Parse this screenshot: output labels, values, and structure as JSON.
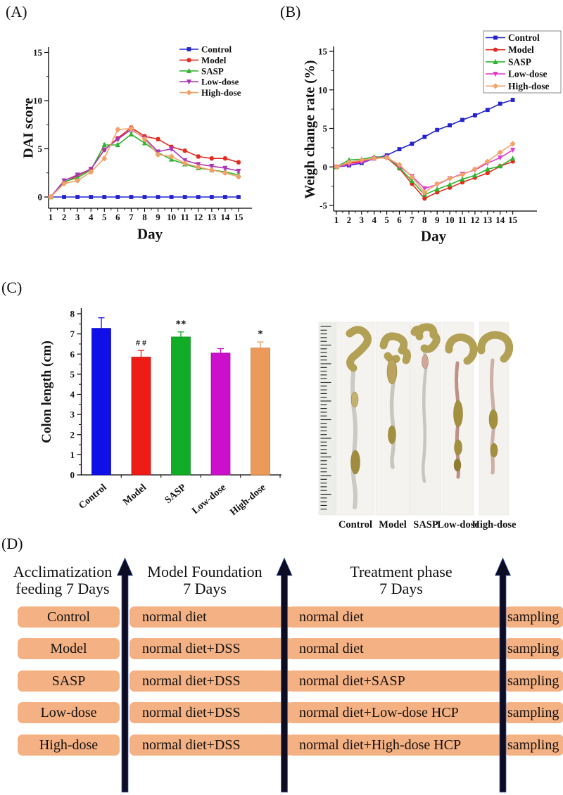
{
  "figure": {
    "panel_labels": {
      "a": "(A)",
      "b": "(B)",
      "c": "(C)",
      "d": "(D)"
    }
  },
  "chart_data": [
    {
      "id": "dai_score",
      "type": "line",
      "panel": "A",
      "title": "",
      "xlabel": "Day",
      "ylabel": "DAI score",
      "x": [
        1,
        2,
        3,
        4,
        5,
        6,
        7,
        8,
        9,
        10,
        11,
        12,
        13,
        14,
        15
      ],
      "xlim": [
        1,
        15
      ],
      "ylim": [
        0,
        15
      ],
      "yticks": [
        0,
        5,
        10,
        15
      ],
      "legend_position": "top-right",
      "legend_boxed": false,
      "series": [
        {
          "name": "Control",
          "color": "#2323cd",
          "marker": "square",
          "values": [
            0,
            0,
            0,
            0,
            0,
            0,
            0,
            0,
            0,
            0,
            0,
            0,
            0,
            0,
            0
          ]
        },
        {
          "name": "Model",
          "color": "#e42b1e",
          "marker": "circle",
          "values": [
            0,
            1.5,
            2.2,
            2.9,
            4.9,
            6.1,
            7.2,
            6.3,
            6.0,
            5.2,
            4.8,
            4.2,
            4.0,
            4.0,
            3.6
          ]
        },
        {
          "name": "SASP",
          "color": "#2eb42e",
          "marker": "triangle-up",
          "values": [
            0,
            1.6,
            2.0,
            2.8,
            5.4,
            5.4,
            6.5,
            5.6,
            4.6,
            3.9,
            3.4,
            3.0,
            2.8,
            2.6,
            2.3
          ]
        },
        {
          "name": "Low-dose",
          "color": "#a936b5",
          "marker": "triangle-down",
          "values": [
            0,
            1.7,
            2.3,
            2.9,
            4.9,
            6.0,
            7.0,
            6.1,
            4.7,
            5.0,
            3.8,
            3.4,
            3.2,
            3.0,
            2.7
          ]
        },
        {
          "name": "High-dose",
          "color": "#f2a269",
          "marker": "diamond",
          "values": [
            0,
            1.4,
            1.7,
            2.6,
            4.0,
            7.0,
            7.1,
            6.0,
            4.4,
            4.2,
            3.5,
            3.1,
            2.8,
            2.5,
            2.1
          ]
        }
      ]
    },
    {
      "id": "weight_change",
      "type": "line",
      "panel": "B",
      "title": "",
      "xlabel": "Day",
      "ylabel": "Weigh change rate (%)",
      "x": [
        1,
        2,
        3,
        4,
        5,
        6,
        7,
        8,
        9,
        10,
        11,
        12,
        13,
        14,
        15
      ],
      "xlim": [
        1,
        15
      ],
      "ylim": [
        -5,
        15
      ],
      "yticks": [
        -5,
        0,
        5,
        10,
        15
      ],
      "legend_position": "top-right",
      "legend_boxed": true,
      "series": [
        {
          "name": "Control",
          "color": "#2323cd",
          "marker": "square",
          "values": [
            0,
            0.2,
            0.5,
            1.1,
            1.5,
            2.3,
            3.0,
            3.9,
            4.8,
            5.4,
            6.1,
            6.7,
            7.4,
            8.2,
            8.7
          ]
        },
        {
          "name": "Model",
          "color": "#e42b1e",
          "marker": "circle",
          "values": [
            0,
            0.5,
            0.7,
            1.1,
            1.2,
            -0.2,
            -2.2,
            -4.1,
            -3.3,
            -2.7,
            -2.0,
            -1.4,
            -0.8,
            0.1,
            0.7
          ]
        },
        {
          "name": "SASP",
          "color": "#2eb42e",
          "marker": "triangle-up",
          "values": [
            0,
            0.9,
            1.0,
            1.3,
            1.3,
            -0.1,
            -1.8,
            -3.6,
            -2.9,
            -2.3,
            -1.6,
            -1.1,
            -0.3,
            0.1,
            1.1
          ]
        },
        {
          "name": "Low-dose",
          "color": "#e13cd4",
          "marker": "triangle-down",
          "values": [
            0,
            0.3,
            0.6,
            1.1,
            1.3,
            0.1,
            -1.2,
            -2.8,
            -2.3,
            -1.5,
            -0.9,
            -0.4,
            0.5,
            1.2,
            2.2
          ]
        },
        {
          "name": "High-dose",
          "color": "#f2a269",
          "marker": "diamond",
          "values": [
            0,
            0.6,
            0.9,
            1.1,
            1.2,
            0.3,
            -1.3,
            -3.3,
            -2.2,
            -1.5,
            -1.0,
            -0.3,
            0.7,
            1.9,
            3.0
          ]
        }
      ]
    },
    {
      "id": "colon_length",
      "type": "bar",
      "panel": "C",
      "title": "",
      "xlabel": "",
      "ylabel": "Colon length (cm)",
      "categories": [
        "Control",
        "Model",
        "SASP",
        "Low-dose",
        "High-dose"
      ],
      "values": [
        7.28,
        5.85,
        6.85,
        6.05,
        6.3
      ],
      "errors": [
        0.52,
        0.33,
        0.25,
        0.22,
        0.3
      ],
      "annotations": [
        "",
        "# #",
        "**",
        "",
        "*"
      ],
      "bar_colors": [
        "#0f0fe8",
        "#ee1c15",
        "#12ad26",
        "#cb0fcb",
        "#eb9a5b"
      ],
      "ylim": [
        0,
        8
      ],
      "yticks": [
        0,
        1,
        2,
        3,
        4,
        5,
        6,
        7,
        8
      ]
    }
  ],
  "colon_photo": {
    "labels": [
      "Control",
      "Model",
      "SASP",
      "Low-dose",
      "High-dose"
    ]
  },
  "panel_d": {
    "headers": [
      [
        "Acclimatization",
        "feeding 7 Days"
      ],
      [
        "Model Foundation",
        "7 Days"
      ],
      [
        "Treatment phase",
        "7 Days"
      ]
    ],
    "bar_color": "#f4b183",
    "rows": [
      {
        "group": "Control",
        "model_foundation": "normal diet",
        "treatment": "normal diet",
        "end": "sampling"
      },
      {
        "group": "Model",
        "model_foundation": "normal diet+DSS",
        "treatment": "normal diet",
        "end": "sampling"
      },
      {
        "group": "SASP",
        "model_foundation": "normal diet+DSS",
        "treatment": "normal diet+SASP",
        "end": "sampling"
      },
      {
        "group": "Low-dose",
        "model_foundation": "normal diet+DSS",
        "treatment": "normal diet+Low-dose HCP",
        "end": "sampling"
      },
      {
        "group": "High-dose",
        "model_foundation": "normal diet+DSS",
        "treatment": "normal diet+High-dose HCP",
        "end": "sampling"
      }
    ]
  }
}
